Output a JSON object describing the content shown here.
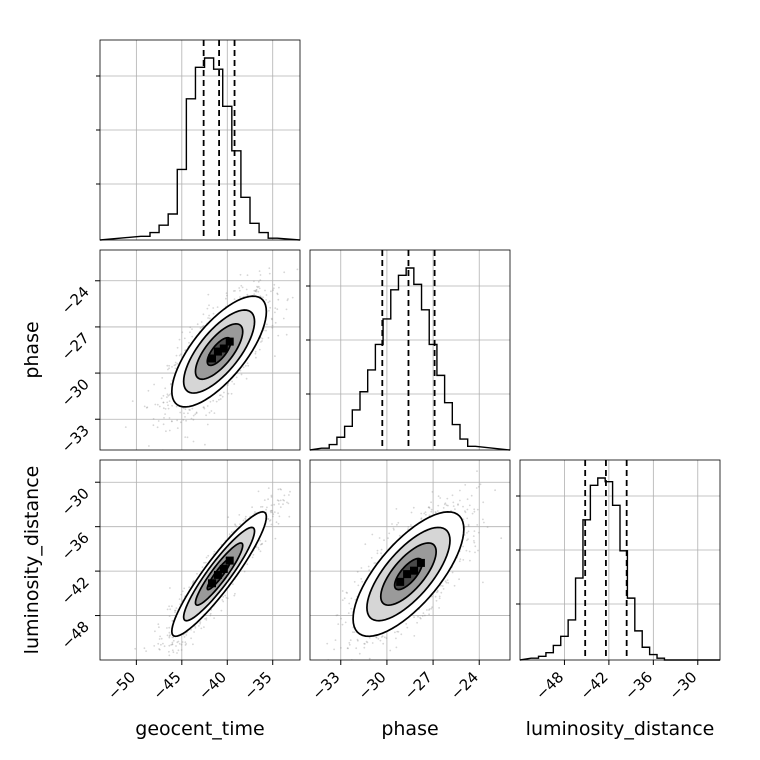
{
  "chart_data": {
    "type": "corner",
    "parameters": [
      "geocent_time",
      "phase",
      "luminosity_distance"
    ],
    "axis_labels": {
      "x": [
        "geocent_time",
        "phase",
        "luminosity_distance"
      ],
      "y": [
        "",
        "phase",
        "luminosity_distance"
      ]
    },
    "ranges": {
      "geocent_time": [
        -54,
        -32
      ],
      "phase": [
        -35,
        -22
      ],
      "luminosity_distance": [
        -54,
        -27
      ]
    },
    "ticks": {
      "geocent_time": [
        -50,
        -45,
        -40,
        -35
      ],
      "phase": [
        -33,
        -30,
        -27,
        -24
      ],
      "luminosity_distance": [
        -48,
        -42,
        -36,
        -30
      ]
    },
    "tick_labels": {
      "geocent_time": [
        "−50",
        "−45",
        "−40",
        "−35"
      ],
      "phase": [
        "−33",
        "−30",
        "−27",
        "−24"
      ],
      "luminosity_distance": [
        "−48",
        "−42",
        "−36",
        "−30"
      ]
    },
    "grid": true,
    "marginals": [
      {
        "parameter": "geocent_time",
        "quantiles": [
          -42.6,
          -40.9,
          -39.2
        ],
        "bins": [
          -49,
          -48,
          -47,
          -46,
          -45,
          -44,
          -43,
          -42,
          -41,
          -40,
          -39,
          -38,
          -37,
          -36,
          -35
        ],
        "counts": [
          0.02,
          0.04,
          0.08,
          0.14,
          0.38,
          0.76,
          0.93,
          0.98,
          0.92,
          0.72,
          0.48,
          0.23,
          0.09,
          0.04,
          0.01
        ]
      },
      {
        "parameter": "phase",
        "quantiles": [
          -30.3,
          -28.6,
          -26.9
        ],
        "bins": [
          -34.0,
          -33.5,
          -33.0,
          -32.5,
          -32.0,
          -31.5,
          -31.0,
          -30.5,
          -30.0,
          -29.5,
          -29.0,
          -28.5,
          -28.0,
          -27.5,
          -27.0,
          -26.5,
          -26.0,
          -25.5,
          -25.0,
          -24.5
        ],
        "counts": [
          0.01,
          0.03,
          0.07,
          0.13,
          0.22,
          0.32,
          0.44,
          0.58,
          0.72,
          0.88,
          0.96,
          1.0,
          0.91,
          0.77,
          0.58,
          0.41,
          0.26,
          0.14,
          0.06,
          0.02
        ]
      },
      {
        "parameter": "luminosity_distance",
        "quantiles": [
          -45.2,
          -42.4,
          -39.6
        ],
        "bins": [
          -52,
          -51,
          -50,
          -49,
          -48,
          -47,
          -46,
          -45,
          -44,
          -43,
          -42,
          -41,
          -40,
          -39,
          -38,
          -37,
          -36,
          -35,
          -34
        ],
        "counts": [
          0.01,
          0.02,
          0.04,
          0.08,
          0.13,
          0.22,
          0.45,
          0.77,
          0.96,
          1.0,
          0.98,
          0.85,
          0.6,
          0.34,
          0.16,
          0.07,
          0.03,
          0.01,
          0.0
        ]
      }
    ],
    "joint": [
      {
        "x": "geocent_time",
        "y": "phase",
        "mean": [
          -40.9,
          -28.6
        ],
        "std": [
          2.6,
          1.8
        ],
        "rho": 0.72,
        "contour_levels_sigma": [
          0.5,
          1.0,
          1.5,
          2.0
        ]
      },
      {
        "x": "geocent_time",
        "y": "luminosity_distance",
        "mean": [
          -40.9,
          -42.4
        ],
        "std": [
          2.6,
          4.2
        ],
        "rho": 0.92,
        "contour_levels_sigma": [
          0.5,
          1.0,
          1.5,
          2.0
        ]
      },
      {
        "x": "phase",
        "y": "luminosity_distance",
        "mean": [
          -28.6,
          -42.4
        ],
        "std": [
          1.8,
          4.2
        ],
        "rho": 0.72,
        "contour_levels_sigma": [
          0.5,
          1.0,
          1.5,
          2.0
        ]
      }
    ],
    "colors": {
      "line": "#000000",
      "grid": "#b0b0b0",
      "points": "#8a8a8a"
    }
  }
}
